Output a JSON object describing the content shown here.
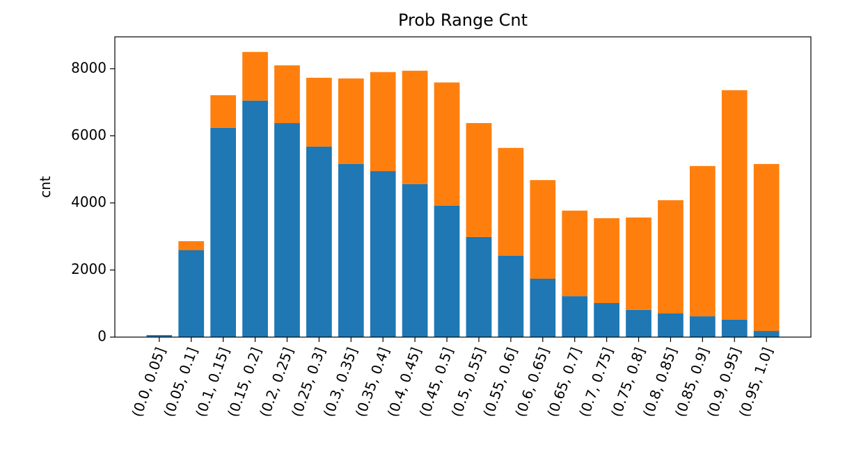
{
  "chart_data": {
    "type": "stacked_bar",
    "title": "Prob Range Cnt",
    "y_label": "cnt",
    "categories": [
      "(0.0, 0.05]",
      "(0.05, 0.1]",
      "(0.1, 0.15]",
      "(0.15, 0.2]",
      "(0.2, 0.25]",
      "(0.25, 0.3]",
      "(0.3, 0.35]",
      "(0.35, 0.4]",
      "(0.4, 0.45]",
      "(0.45, 0.5]",
      "(0.5, 0.55]",
      "(0.55, 0.6]",
      "(0.6, 0.65]",
      "(0.65, 0.7]",
      "(0.7, 0.75]",
      "(0.75, 0.8]",
      "(0.8, 0.85]",
      "(0.85, 0.9]",
      "(0.9, 0.95]",
      "(0.95, 1.0]"
    ],
    "series": [
      {
        "color": "#1f77b4",
        "values": [
          60,
          2590,
          6240,
          7050,
          6380,
          5680,
          5160,
          4950,
          4560,
          3920,
          2985,
          2425,
          1740,
          1220,
          1015,
          810,
          705,
          620,
          520,
          185
        ]
      },
      {
        "color": "#ff7f0e",
        "values": [
          0,
          270,
          970,
          1450,
          1720,
          2050,
          2550,
          2950,
          3380,
          3670,
          3395,
          3215,
          2940,
          2550,
          2530,
          2755,
          3375,
          4480,
          6840,
          4975
        ]
      }
    ],
    "ylim": [
      0,
      8950
    ],
    "yticks": [
      0,
      2000,
      4000,
      6000,
      8000
    ],
    "grid": false
  }
}
